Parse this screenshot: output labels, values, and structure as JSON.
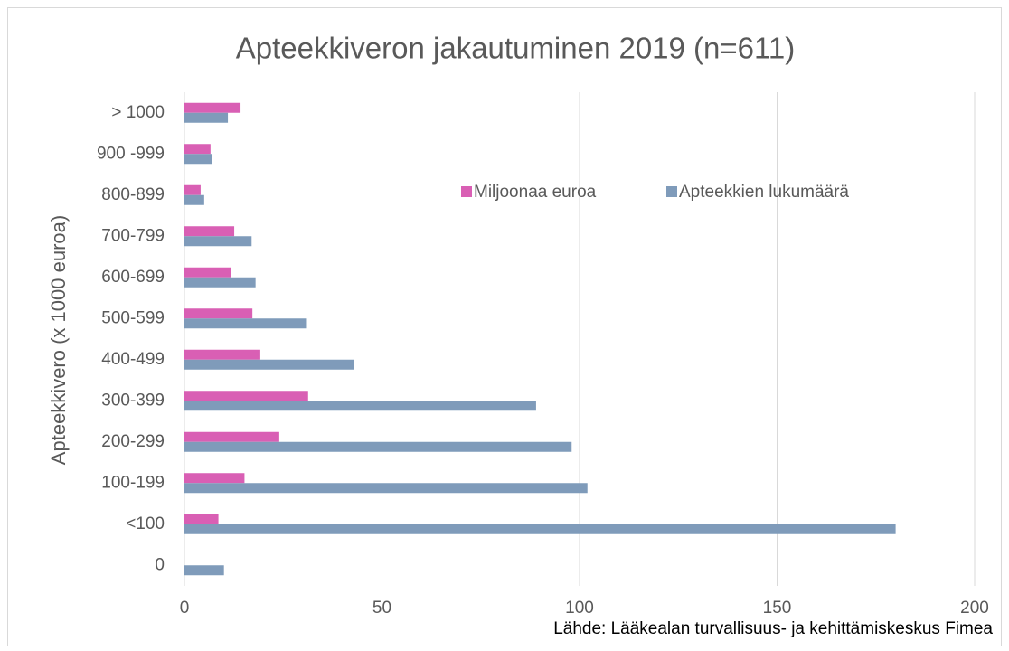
{
  "chart_data": {
    "type": "bar",
    "orientation": "horizontal",
    "title": "Apteekkiveron jakautuminen 2019 (n=611)",
    "y_label": "Apteekkivero (x 1000 euroa)",
    "source": "Lähde: Lääkealan turvallisuus- ja kehittämiskeskus Fimea",
    "categories": [
      "0",
      "<100",
      "100-199",
      "200-299",
      "300-399",
      "400-499",
      "500-599",
      "600-699",
      "700-799",
      "800-899",
      "900 -999",
      "> 1000"
    ],
    "series": [
      {
        "name": "Miljoonaa euroa",
        "color": "#d95fb4",
        "values": [
          0,
          8.6,
          15.2,
          24,
          31.3,
          19.2,
          17.2,
          11.7,
          12.6,
          4.1,
          6.6,
          14.2
        ]
      },
      {
        "name": "Apteekkien lukumäärä",
        "color": "#7f9bba",
        "values": [
          10,
          180,
          102,
          98,
          89,
          43,
          31,
          18,
          17,
          5,
          7,
          11
        ]
      }
    ],
    "xlim": [
      0,
      200
    ],
    "xticks": [
      0,
      50,
      100,
      150,
      200
    ],
    "grid": true
  }
}
